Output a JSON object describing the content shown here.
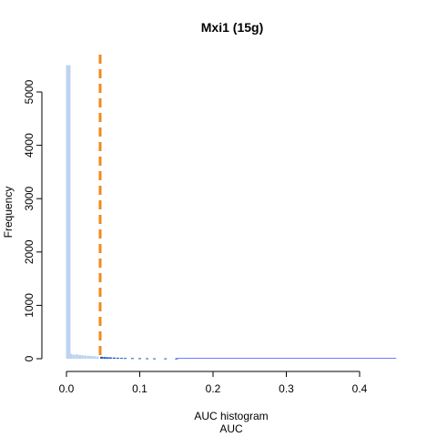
{
  "chart_data": {
    "type": "histogram",
    "title": "Mxi1 (15g)",
    "xlabel_line1": "AUC histogram",
    "xlabel_line2": "AUC",
    "ylabel": "Frequency",
    "xlim": [
      0.0,
      0.45
    ],
    "ylim": [
      0,
      5600
    ],
    "x_ticks": [
      0.0,
      0.1,
      0.2,
      0.3,
      0.4
    ],
    "x_tick_labels": [
      "0.0",
      "0.1",
      "0.2",
      "0.3",
      "0.4"
    ],
    "y_ticks": [
      0,
      1000,
      2000,
      3000,
      4000,
      5000
    ],
    "y_tick_labels": [
      "0",
      "1000",
      "2000",
      "3000",
      "4000",
      "5000"
    ],
    "threshold": 0.046,
    "colors": {
      "bars_light": "#bcd4f0",
      "bars_dark": "#1a56c4",
      "tail_line": "#6a7cff",
      "threshold": "#f08a1e"
    },
    "bins": [
      {
        "x": 0.0025,
        "y": 5500,
        "tone": "light"
      },
      {
        "x": 0.006,
        "y": 90,
        "tone": "light"
      },
      {
        "x": 0.01,
        "y": 75,
        "tone": "light"
      },
      {
        "x": 0.014,
        "y": 80,
        "tone": "light"
      },
      {
        "x": 0.018,
        "y": 70,
        "tone": "light"
      },
      {
        "x": 0.022,
        "y": 65,
        "tone": "light"
      },
      {
        "x": 0.026,
        "y": 60,
        "tone": "light"
      },
      {
        "x": 0.03,
        "y": 55,
        "tone": "light"
      },
      {
        "x": 0.034,
        "y": 50,
        "tone": "light"
      },
      {
        "x": 0.038,
        "y": 45,
        "tone": "light"
      },
      {
        "x": 0.042,
        "y": 40,
        "tone": "light"
      },
      {
        "x": 0.048,
        "y": 35,
        "tone": "dark"
      },
      {
        "x": 0.052,
        "y": 30,
        "tone": "dark"
      },
      {
        "x": 0.056,
        "y": 28,
        "tone": "dark"
      },
      {
        "x": 0.06,
        "y": 25,
        "tone": "dark"
      },
      {
        "x": 0.065,
        "y": 22,
        "tone": "dark"
      },
      {
        "x": 0.07,
        "y": 18,
        "tone": "dark"
      },
      {
        "x": 0.075,
        "y": 16,
        "tone": "dark"
      },
      {
        "x": 0.08,
        "y": 14,
        "tone": "dark"
      },
      {
        "x": 0.09,
        "y": 12,
        "tone": "dark"
      },
      {
        "x": 0.1,
        "y": 10,
        "tone": "dark"
      },
      {
        "x": 0.11,
        "y": 8,
        "tone": "dark"
      },
      {
        "x": 0.12,
        "y": 7,
        "tone": "dark"
      },
      {
        "x": 0.135,
        "y": 6,
        "tone": "dark"
      },
      {
        "x": 0.15,
        "y": 5,
        "tone": "dark"
      }
    ]
  }
}
